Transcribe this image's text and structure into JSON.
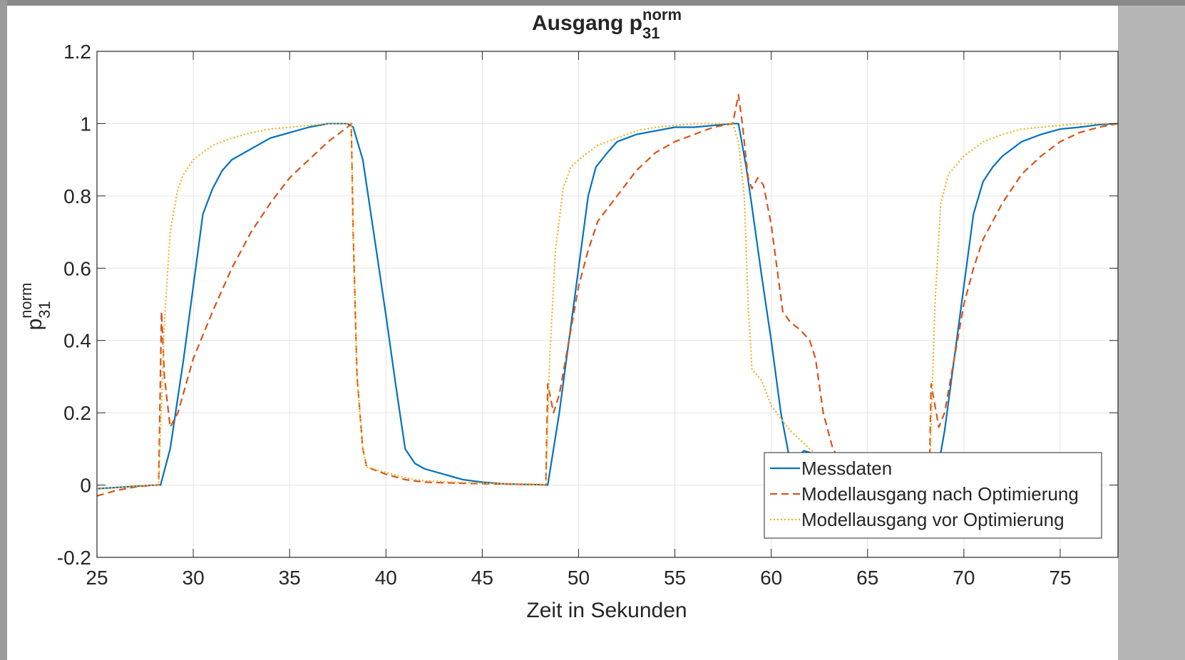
{
  "chart_data": {
    "type": "line",
    "title": {
      "text": "Ausgang p",
      "superscript": "norm",
      "subscript": "31"
    },
    "y_label": {
      "text": "p",
      "superscript": "norm",
      "subscript": "31"
    },
    "x_label": "Zeit in Sekunden",
    "xlim": [
      25,
      78
    ],
    "xticks": [
      25,
      30,
      35,
      40,
      45,
      50,
      55,
      60,
      65,
      70,
      75
    ],
    "ylim": [
      -0.2,
      1.2
    ],
    "yticks": [
      -0.2,
      0,
      0.2,
      0.4,
      0.6,
      0.8,
      1,
      1.2
    ],
    "grid": true,
    "legend_position": "southeast",
    "series": [
      {
        "name": "Messdaten",
        "color": "#0072BD",
        "style": "solid",
        "x": [
          25,
          28,
          28.3,
          28.8,
          29.5,
          30,
          30.5,
          31,
          31.5,
          32,
          33,
          34,
          35,
          36,
          37,
          38,
          38.3,
          38.8,
          39.5,
          40,
          40.5,
          41,
          41.5,
          42,
          43,
          44,
          45,
          46,
          47,
          48,
          48.4,
          49,
          49.5,
          50,
          50.5,
          50.9,
          51.5,
          52,
          53,
          54,
          55,
          56,
          57,
          58,
          58.3,
          58.7,
          59,
          59.5,
          60,
          60.5,
          61,
          61.3,
          61.7,
          62,
          62.5,
          63,
          63.5,
          65,
          67,
          68,
          68.5,
          69,
          69.5,
          70,
          70.5,
          71,
          71.5,
          72,
          73,
          74,
          75,
          76,
          77,
          78
        ],
        "values": [
          -0.01,
          0,
          0,
          0.1,
          0.35,
          0.55,
          0.75,
          0.82,
          0.87,
          0.9,
          0.93,
          0.96,
          0.975,
          0.99,
          1,
          1,
          0.99,
          0.9,
          0.65,
          0.47,
          0.28,
          0.1,
          0.06,
          0.045,
          0.03,
          0.015,
          0.008,
          0.004,
          0.002,
          0.001,
          0,
          0.2,
          0.4,
          0.6,
          0.8,
          0.88,
          0.92,
          0.95,
          0.97,
          0.98,
          0.99,
          0.99,
          0.995,
          1,
          1,
          0.88,
          0.77,
          0.58,
          0.4,
          0.2,
          0.06,
          0.075,
          0.095,
          0.09,
          0.075,
          0.06,
          0.04,
          0.01,
          0.005,
          0.002,
          0,
          0.15,
          0.35,
          0.55,
          0.75,
          0.84,
          0.88,
          0.91,
          0.95,
          0.97,
          0.985,
          0.99,
          0.997,
          1
        ]
      },
      {
        "name": "Modellausgang nach Optimierung",
        "color": "#D95319",
        "style": "dashed",
        "x": [
          25,
          26,
          27,
          28,
          28.2,
          28.35,
          28.5,
          28.8,
          29.2,
          30,
          31,
          32,
          33,
          34,
          35,
          36,
          37,
          38,
          38.2,
          38.3,
          38.5,
          38.8,
          39,
          40,
          41,
          42,
          44,
          46,
          48,
          48.3,
          48.4,
          48.7,
          49,
          49.5,
          50,
          50.5,
          51,
          52,
          53,
          54,
          55,
          56,
          57,
          58,
          58.3,
          58.5,
          58.8,
          59,
          59.3,
          59.6,
          60,
          60.3,
          60.6,
          61,
          61.5,
          62,
          62.3,
          62.7,
          63.2,
          63.8,
          64.5,
          66,
          68,
          68.2,
          68.3,
          68.7,
          69,
          69.5,
          70,
          70.5,
          71,
          72,
          73,
          74,
          75,
          76,
          77,
          78
        ],
        "values": [
          -0.03,
          -0.015,
          -0.005,
          0,
          0,
          0.48,
          0.3,
          0.16,
          0.2,
          0.35,
          0.48,
          0.6,
          0.7,
          0.78,
          0.85,
          0.9,
          0.95,
          0.99,
          1,
          0.7,
          0.3,
          0.1,
          0.05,
          0.03,
          0.015,
          0.008,
          0.005,
          0.003,
          0.001,
          0,
          0.28,
          0.2,
          0.25,
          0.4,
          0.55,
          0.65,
          0.73,
          0.8,
          0.87,
          0.92,
          0.95,
          0.97,
          0.99,
          1,
          1.08,
          1,
          0.85,
          0.82,
          0.85,
          0.83,
          0.72,
          0.6,
          0.48,
          0.45,
          0.43,
          0.4,
          0.35,
          0.2,
          0.1,
          0.05,
          0.02,
          0.005,
          0.001,
          0,
          0.28,
          0.16,
          0.2,
          0.35,
          0.5,
          0.6,
          0.68,
          0.78,
          0.86,
          0.91,
          0.95,
          0.975,
          0.99,
          1
        ]
      },
      {
        "name": "Modellausgang vor Optimierung",
        "color": "#EDB120",
        "style": "dotted",
        "x": [
          25,
          28,
          28.2,
          28.5,
          28.8,
          29.2,
          29.5,
          30,
          31,
          32,
          33,
          34,
          35,
          36,
          37,
          38,
          38.2,
          38.3,
          38.5,
          38.8,
          39,
          40,
          41,
          42,
          44,
          46,
          48,
          48.3,
          48.5,
          48.8,
          49.2,
          49.6,
          50,
          51,
          52,
          53,
          54,
          55,
          56,
          58,
          58.3,
          58.6,
          58.8,
          59,
          59.5,
          60,
          61,
          62,
          62.5,
          63,
          65,
          67,
          68.2,
          68.5,
          68.8,
          69.2,
          70,
          71,
          72,
          73,
          74,
          75,
          76,
          78
        ],
        "values": [
          -0.01,
          0,
          0,
          0.45,
          0.7,
          0.82,
          0.86,
          0.9,
          0.94,
          0.96,
          0.975,
          0.985,
          0.99,
          0.995,
          1,
          1,
          1,
          0.7,
          0.3,
          0.1,
          0.05,
          0.035,
          0.02,
          0.012,
          0.007,
          0.004,
          0.002,
          0,
          0.35,
          0.65,
          0.82,
          0.88,
          0.9,
          0.94,
          0.96,
          0.98,
          0.99,
          0.995,
          1,
          1,
          0.95,
          0.8,
          0.5,
          0.32,
          0.29,
          0.22,
          0.15,
          0.1,
          0.08,
          0.06,
          0.02,
          0.005,
          0,
          0.5,
          0.78,
          0.86,
          0.91,
          0.95,
          0.97,
          0.985,
          0.99,
          0.995,
          1,
          1
        ]
      }
    ]
  }
}
